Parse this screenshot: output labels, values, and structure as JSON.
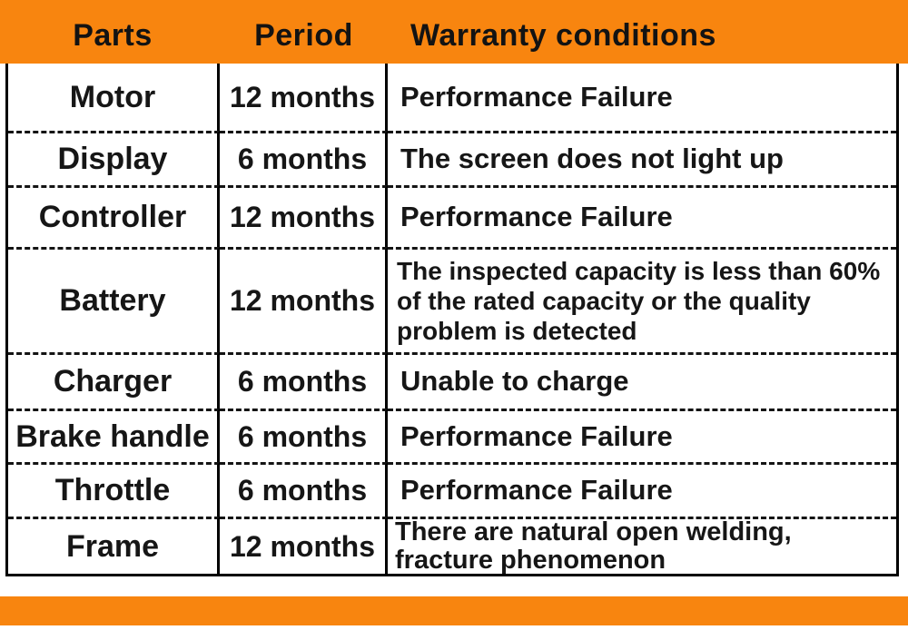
{
  "colors": {
    "accent_orange": "#f8850f",
    "text": "#161616",
    "border": "#000000"
  },
  "header": {
    "parts": "Parts",
    "period": "Period",
    "conditions": "Warranty conditions"
  },
  "rows": [
    {
      "part": "Motor",
      "period": "12 months",
      "condition": "Performance Failure"
    },
    {
      "part": "Display",
      "period": "6 months",
      "condition": "The screen does not light up"
    },
    {
      "part": "Controller",
      "period": "12 months",
      "condition": "Performance Failure"
    },
    {
      "part": "Battery",
      "period": "12 months",
      "condition": "The inspected capacity is less than 60% of the rated capacity or the quality problem is detected"
    },
    {
      "part": "Charger",
      "period": "6 months",
      "condition": "Unable to charge"
    },
    {
      "part": "Brake handle",
      "period": "6 months",
      "condition": "Performance Failure"
    },
    {
      "part": "Throttle",
      "period": "6 months",
      "condition": "Performance Failure"
    },
    {
      "part": "Frame",
      "period": "12 months",
      "condition": "There are natural open welding, fracture phenomenon"
    }
  ]
}
